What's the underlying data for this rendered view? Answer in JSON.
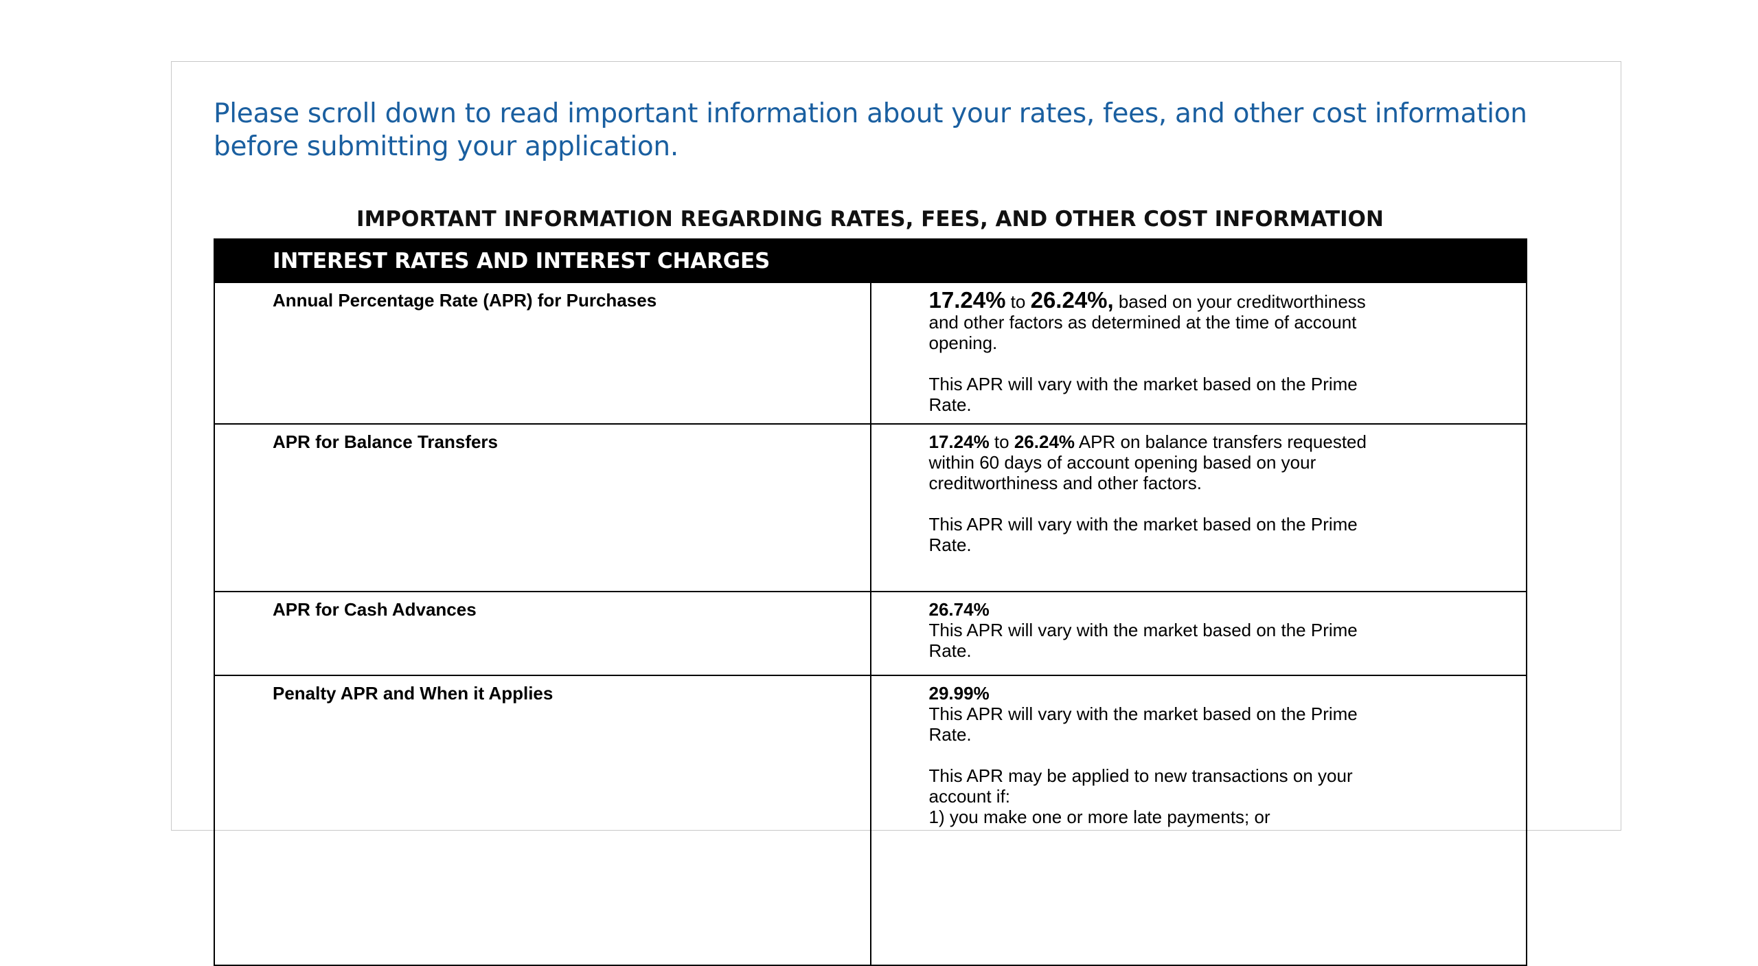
{
  "notice": "Please scroll down to read important information about your rates, fees, and other cost information before submitting your application.",
  "disclosure_title": "IMPORTANT INFORMATION REGARDING RATES, FEES, AND OTHER COST INFORMATION",
  "section_header": "INTEREST RATES AND INTEREST CHARGES",
  "rows": {
    "purchases": {
      "label": "Annual Percentage Rate (APR) for Purchases",
      "rate_low": "17.24%",
      "to": "to",
      "rate_high": "26.24%,",
      "desc": "based on your creditworthiness and other factors as determined at the time of account opening.",
      "vary": "This APR will vary with the market based on the Prime Rate."
    },
    "balance_transfers": {
      "label": "APR for Balance Transfers",
      "rate_low": "17.24%",
      "to": "to",
      "rate_high": "26.24%",
      "desc": "APR on balance transfers requested within 60 days of account opening based on your creditworthiness and other factors.",
      "vary": "This APR will vary with the market based on the Prime Rate."
    },
    "cash_advances": {
      "label": "APR for Cash Advances",
      "rate": "26.74%",
      "vary": "This APR will vary with the market based on the Prime Rate."
    },
    "penalty": {
      "label": "Penalty APR and When it Applies",
      "rate": "29.99%",
      "vary": "This APR will vary with the market based on the Prime Rate.",
      "applies": "This APR may be applied to new transactions on your account if:",
      "condition_1": "1) you make one or more late payments; or"
    }
  }
}
